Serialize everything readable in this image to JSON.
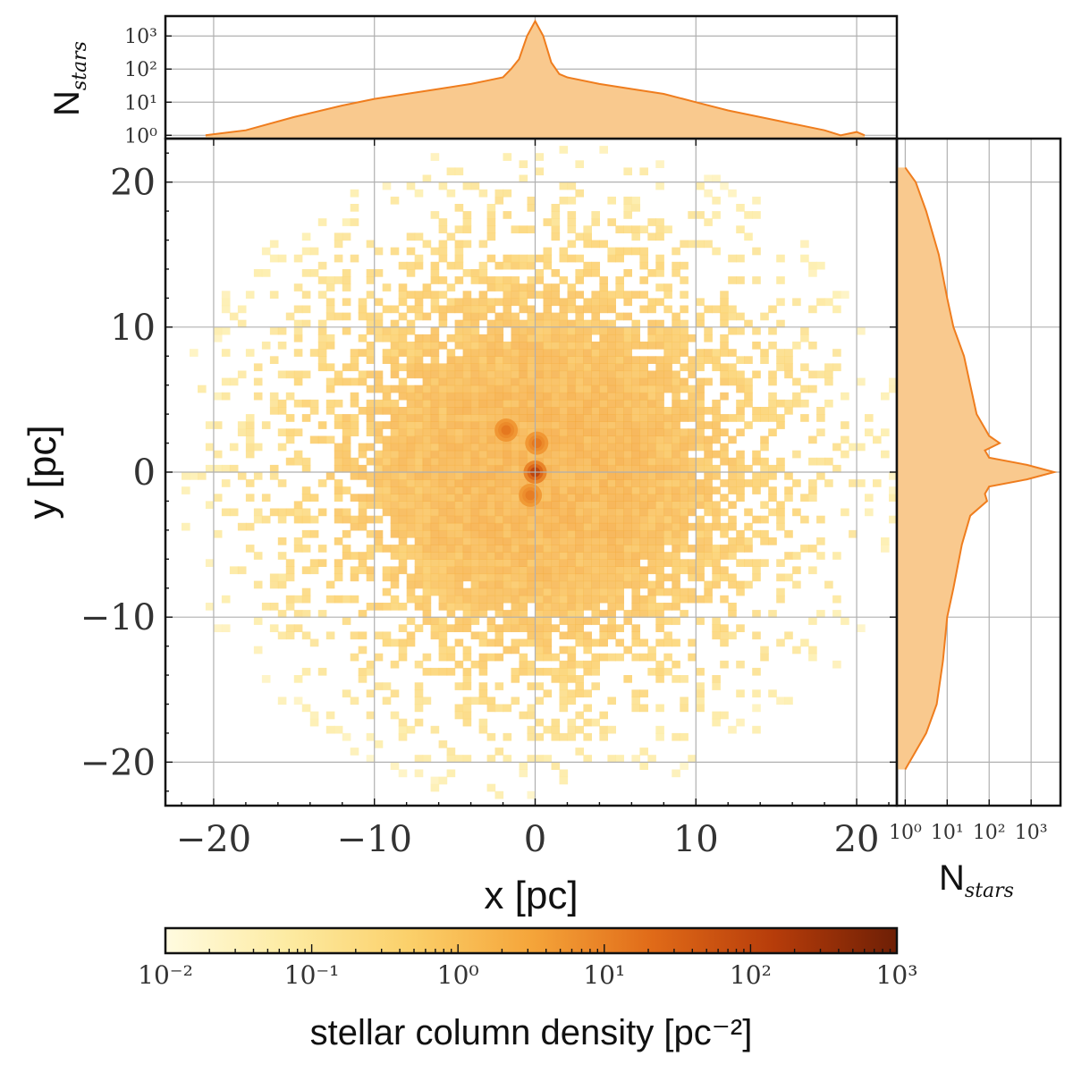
{
  "chart_data": {
    "type": "heatmap",
    "main": {
      "xlabel": "x [pc]",
      "ylabel": "y [pc]",
      "xlim": [
        -23,
        22.5
      ],
      "ylim": [
        -23,
        23
      ],
      "xticks": [
        -20,
        -10,
        0,
        10,
        20
      ],
      "yticks": [
        -20,
        -10,
        0,
        10,
        20
      ],
      "xtick_labels": [
        "−20",
        "−10",
        "0",
        "10",
        "20"
      ],
      "ytick_labels": [
        "−20",
        "−10",
        "0",
        "10",
        "20"
      ],
      "grid": true,
      "dense_clumps": [
        {
          "x": -1.8,
          "y": 2.9,
          "density": 15
        },
        {
          "x": 0.1,
          "y": 2.0,
          "density": 15
        },
        {
          "x": 0.0,
          "y": 0.0,
          "density": 120
        },
        {
          "x": -0.3,
          "y": -1.6,
          "density": 12
        }
      ],
      "background_scale_pc": 8
    },
    "top_histogram": {
      "ylabel_main": "N",
      "ylabel_sub": "stars",
      "scale": "log",
      "ylim_log10": [
        -0.1,
        3.6
      ],
      "yticks_log10": [
        0,
        1,
        2,
        3
      ],
      "x": [
        -20.5,
        -18,
        -15,
        -12,
        -10,
        -8,
        -6,
        -4,
        -3,
        -2,
        -1.5,
        -1,
        -0.5,
        0,
        0.5,
        1,
        1.5,
        2,
        4,
        6,
        8,
        10,
        12,
        15,
        18,
        19,
        20,
        20.5
      ],
      "log10_counts": [
        0.0,
        0.15,
        0.55,
        0.9,
        1.1,
        1.25,
        1.4,
        1.55,
        1.65,
        1.75,
        2.0,
        2.3,
        3.0,
        3.45,
        3.0,
        2.2,
        1.85,
        1.75,
        1.55,
        1.4,
        1.25,
        1.0,
        0.75,
        0.45,
        0.15,
        0.0,
        0.1,
        0.0
      ]
    },
    "right_histogram": {
      "xlabel_main": "N",
      "xlabel_sub": "stars",
      "scale": "log",
      "xlim_log10": [
        -0.2,
        3.7
      ],
      "xticks_log10": [
        0,
        1,
        2,
        3
      ],
      "y": [
        21,
        20,
        18,
        15,
        12,
        10,
        8,
        6,
        4,
        3,
        2.5,
        2,
        1.5,
        1,
        0.5,
        0,
        -0.5,
        -1,
        -1.5,
        -2,
        -3,
        -5,
        -8,
        -10,
        -13,
        -16,
        -18,
        -19.5,
        -20.5
      ],
      "log10_counts": [
        0.0,
        0.25,
        0.5,
        0.8,
        1.0,
        1.15,
        1.4,
        1.55,
        1.7,
        1.9,
        2.0,
        2.25,
        1.9,
        2.0,
        2.9,
        3.55,
        2.9,
        2.0,
        1.9,
        1.95,
        1.55,
        1.35,
        1.15,
        1.0,
        0.9,
        0.75,
        0.5,
        0.2,
        0.0
      ]
    },
    "colorbar": {
      "label": "stellar column density [pc⁻²]",
      "scale": "log",
      "range_log10": [
        -2,
        3
      ],
      "ticks": [
        "10⁻²",
        "10⁻¹",
        "10⁰",
        "10¹",
        "10²",
        "10³"
      ],
      "colors": [
        "#fffbe0",
        "#fdeba2",
        "#fbd06a",
        "#f5a53a",
        "#e06a18",
        "#b63c0a",
        "#6e1f05"
      ]
    },
    "fill_color": "#f9c98e",
    "line_color": "#ef7d1e"
  },
  "text": {
    "top_ticks": [
      "10⁰",
      "10¹",
      "10²",
      "10³"
    ],
    "right_ticks": [
      "10⁰",
      "10¹",
      "10²",
      "10³"
    ]
  }
}
